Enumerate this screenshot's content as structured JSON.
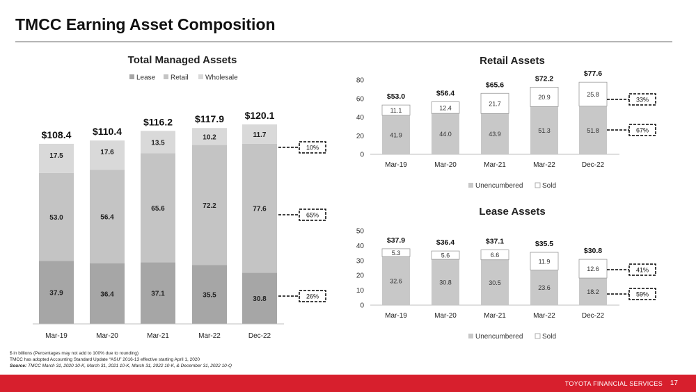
{
  "header": {
    "title": "TMCC Earning Asset Composition"
  },
  "colors": {
    "lease": "#a6a6a6",
    "retail": "#c4c4c4",
    "wholesale": "#d9d9d9",
    "unencumbered": "#c8c8c8",
    "sold": "#ffffff",
    "footer": "#d71f2d"
  },
  "chart_data": [
    {
      "type": "bar",
      "stacked": true,
      "title": "Total Managed Assets",
      "categories": [
        "Mar-19",
        "Mar-20",
        "Mar-21",
        "Mar-22",
        "Dec-22"
      ],
      "series": [
        {
          "name": "Lease",
          "values": [
            37.9,
            36.4,
            37.1,
            35.5,
            30.8
          ]
        },
        {
          "name": "Retail",
          "values": [
            53.0,
            56.4,
            65.6,
            72.2,
            77.6
          ]
        },
        {
          "name": "Wholesale",
          "values": [
            17.5,
            17.6,
            13.5,
            10.2,
            11.7
          ]
        }
      ],
      "totals": [
        "$108.4",
        "$110.4",
        "$116.2",
        "$117.9",
        "$120.1"
      ],
      "labels": [
        [
          "37.9",
          "53.0",
          "17.5"
        ],
        [
          "36.4",
          "56.4",
          "17.6"
        ],
        [
          "37.1",
          "65.6",
          "13.5"
        ],
        [
          "35.5",
          "72.2",
          "10.2"
        ],
        [
          "30.8",
          "77.6",
          "11.7"
        ]
      ],
      "callouts": [
        "10%",
        "65%",
        "26%"
      ],
      "legend": "top"
    },
    {
      "type": "bar",
      "stacked": true,
      "title": "Retail Assets",
      "categories": [
        "Mar-19",
        "Mar-20",
        "Mar-21",
        "Mar-22",
        "Dec-22"
      ],
      "series": [
        {
          "name": "Unencumbered",
          "values": [
            41.9,
            44.0,
            43.9,
            51.3,
            51.8
          ]
        },
        {
          "name": "Sold",
          "values": [
            11.1,
            12.4,
            21.7,
            20.9,
            25.8
          ]
        }
      ],
      "totals": [
        "$53.0",
        "$56.4",
        "$65.6",
        "$72.2",
        "$77.6"
      ],
      "labels": [
        [
          "41.9",
          "11.1"
        ],
        [
          "44.0",
          "12.4"
        ],
        [
          "43.9",
          "21.7"
        ],
        [
          "51.3",
          "20.9"
        ],
        [
          "51.8",
          "25.8"
        ]
      ],
      "yticks": [
        "0",
        "20",
        "40",
        "60",
        "80"
      ],
      "ylim": [
        0,
        80
      ],
      "callouts": [
        "33%",
        "67%"
      ],
      "legend": "bottom"
    },
    {
      "type": "bar",
      "stacked": true,
      "title": "Lease Assets",
      "categories": [
        "Mar-19",
        "Mar-20",
        "Mar-21",
        "Mar-22",
        "Dec-22"
      ],
      "series": [
        {
          "name": "Unencumbered",
          "values": [
            32.6,
            30.8,
            30.5,
            23.6,
            18.2
          ]
        },
        {
          "name": "Sold",
          "values": [
            5.3,
            5.6,
            6.6,
            11.9,
            12.6
          ]
        }
      ],
      "totals": [
        "$37.9",
        "$36.4",
        "$37.1",
        "$35.5",
        "$30.8"
      ],
      "labels": [
        [
          "32.6",
          "5.3"
        ],
        [
          "30.8",
          "5.6"
        ],
        [
          "30.5",
          "6.6"
        ],
        [
          "23.6",
          "11.9"
        ],
        [
          "18.2",
          "12.6"
        ]
      ],
      "yticks": [
        "0",
        "10",
        "20",
        "30",
        "40",
        "50"
      ],
      "ylim": [
        0,
        50
      ],
      "callouts": [
        "41%",
        "59%"
      ],
      "legend": "bottom"
    }
  ],
  "notes": {
    "line1": "$ in billions (Percentages may not add to 100% due to rounding)",
    "line2": "TMCC has adopted Accounting Standard Update “ASU” 2016-13 effective starting April 1, 2020",
    "source_label": "Source:",
    "source_text": " TMCC March 31, 2020 10-K, March 31, 2021 10-K, March 31, 2022 10-K, & December 31, 2022 10-Q"
  },
  "footer": {
    "brand": "TOYOTA FINANCIAL SERVICES",
    "page": "17"
  }
}
